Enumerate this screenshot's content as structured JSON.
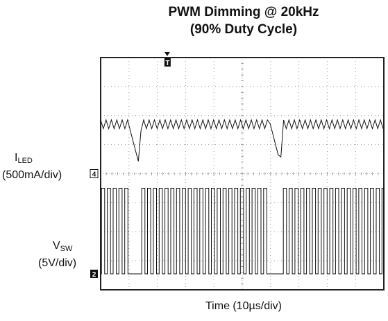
{
  "chart_data": {
    "type": "line",
    "title_line1": "PWM Dimming @ 20kHz",
    "title_line2": "(90% Duty Cycle)",
    "xlabel": "Time (10µs/div)",
    "grid": true,
    "x_divisions": 10,
    "y_divisions": 8,
    "trigger_marker": "T",
    "x_range_us": [
      0,
      100
    ],
    "series": [
      {
        "name_main": "I",
        "name_sub": "LED",
        "scale": "(500mA/div)",
        "marker": "4",
        "pwm_period_us": 50,
        "dimming_dip_times_us": [
          9.5,
          59.5
        ]
      },
      {
        "name_main": "V",
        "name_sub": "SW",
        "scale": "(5V/div)",
        "marker": "2",
        "pwm_period_us": 50,
        "off_window_us": [
          [
            9.5,
            14.5
          ],
          [
            59.5,
            64.5
          ]
        ]
      }
    ]
  }
}
